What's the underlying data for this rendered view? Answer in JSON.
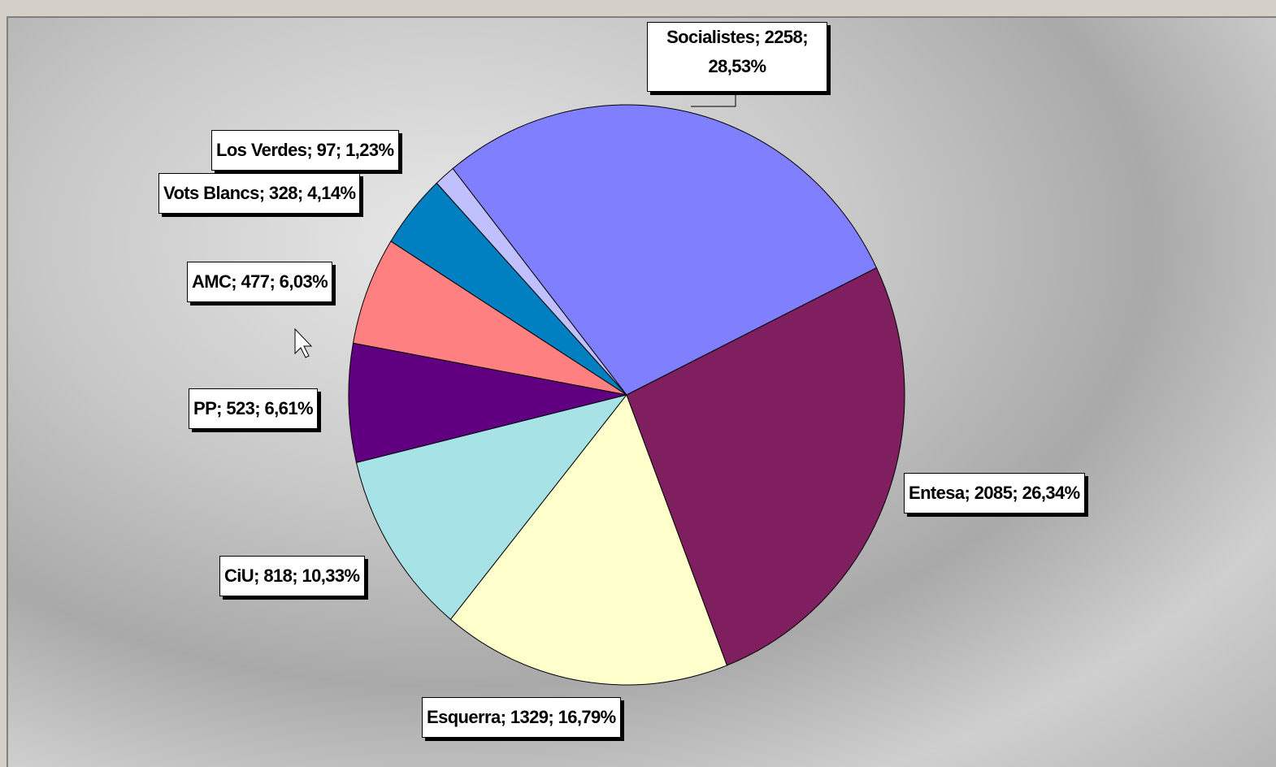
{
  "chart_data": {
    "type": "pie",
    "values": [
      2258,
      2085,
      1329,
      818,
      523,
      477,
      328,
      97
    ],
    "value_labels": [
      "Socialistes; 2258; 28,53%",
      "Entesa; 2085; 26,34%",
      "Esquerra; 1329; 16,79%",
      "CiU; 818; 10,33%",
      "PP; 523; 6,61%",
      "AMC; 477; 6,03%",
      "Vots Blancs; 328; 4,14%",
      "Los Verdes; 97; 1,23%"
    ],
    "colors": [
      "#8080ff",
      "#801f60",
      "#ffffcc",
      "#a6e2e6",
      "#600080",
      "#ff8080",
      "#0080c0",
      "#c0c0ff"
    ]
  }
}
